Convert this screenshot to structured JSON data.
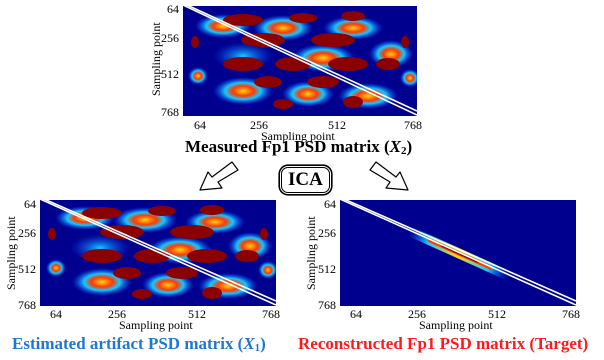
{
  "panels": {
    "measured": {
      "title_prefix": "Measured Fp1 PSD matrix (",
      "title_var": "X",
      "title_sub": "2",
      "title_suffix": ")",
      "xlabel": "Sampling point",
      "ylabel": "Sampling point",
      "xticks": [
        "64",
        "256",
        "512",
        "768"
      ],
      "yticks": [
        "64",
        "256",
        "512",
        "768"
      ],
      "title_color": "#000000"
    },
    "artifact": {
      "title_prefix": "Estimated artifact PSD matrix (",
      "title_var": "X",
      "title_sub": "1",
      "title_suffix": ")",
      "xlabel": "Sampling point",
      "ylabel": "Sampling point",
      "xticks": [
        "64",
        "256",
        "512",
        "768"
      ],
      "yticks": [
        "64",
        "256",
        "512",
        "768"
      ],
      "title_color": "#1f77d4"
    },
    "reconstructed": {
      "title_text": "Reconstructed Fp1 PSD matrix (Target)",
      "xlabel": "Sampling point",
      "ylabel": "Sampling point",
      "xticks": [
        "64",
        "256",
        "512",
        "768"
      ],
      "yticks": [
        "64",
        "256",
        "512",
        "768"
      ],
      "title_color": "#ff1a1a"
    }
  },
  "ica_label": "ICA",
  "colors": {
    "background": "#00008f",
    "diagonal": "#ffffff",
    "hot": "#8b0000",
    "warm": "#ff3a00",
    "yellow": "#ffd21a",
    "cyan": "#16c8ff",
    "mid_blue": "#0a4cff"
  },
  "icons": [
    "arrow-down-left-icon",
    "arrow-down-right-icon"
  ]
}
